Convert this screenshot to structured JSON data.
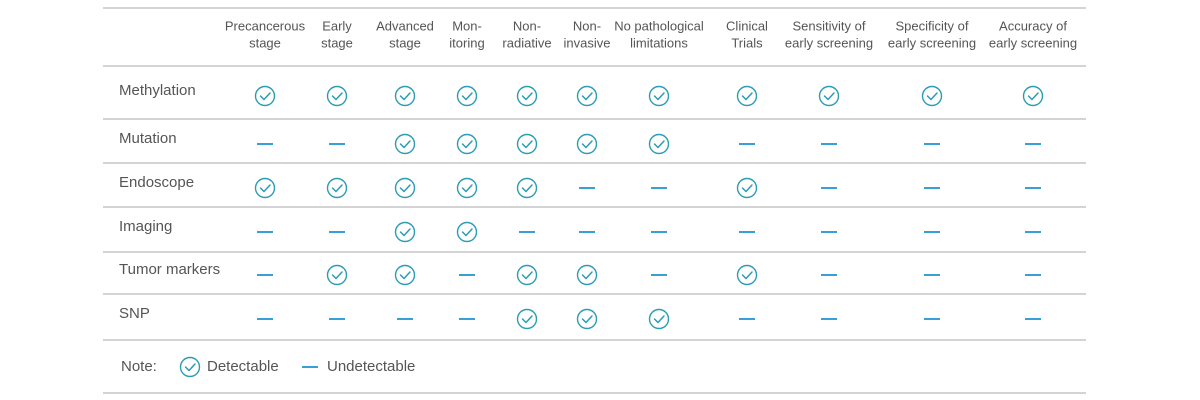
{
  "table": {
    "columns": [
      [
        "Precancerous",
        "stage"
      ],
      [
        "Early",
        "stage"
      ],
      [
        "Advanced",
        "stage"
      ],
      [
        "Mon-",
        "itoring"
      ],
      [
        "Non-",
        "radiative"
      ],
      [
        "Non-",
        "invasive"
      ],
      [
        "No pathological",
        "limitations"
      ],
      [
        "Clinical",
        "Trials"
      ],
      [
        "Sensitivity of",
        "early screening"
      ],
      [
        "Specificity of",
        "early screening"
      ],
      [
        "Accuracy of",
        "early screening"
      ]
    ],
    "rows": [
      {
        "label": "Methylation",
        "detectable": [
          true,
          true,
          true,
          true,
          true,
          true,
          true,
          true,
          true,
          true,
          true
        ]
      },
      {
        "label": "Mutation",
        "detectable": [
          false,
          false,
          true,
          true,
          true,
          true,
          true,
          false,
          false,
          false,
          false
        ]
      },
      {
        "label": "Endoscope",
        "detectable": [
          true,
          true,
          true,
          true,
          true,
          false,
          false,
          true,
          false,
          false,
          false
        ]
      },
      {
        "label": "Imaging",
        "detectable": [
          false,
          false,
          true,
          true,
          false,
          false,
          false,
          false,
          false,
          false,
          false
        ]
      },
      {
        "label": "Tumor markers",
        "detectable": [
          false,
          true,
          true,
          false,
          true,
          true,
          false,
          true,
          false,
          false,
          false
        ]
      },
      {
        "label": "SNP",
        "detectable": [
          false,
          false,
          false,
          false,
          true,
          true,
          true,
          false,
          false,
          false,
          false
        ]
      }
    ]
  },
  "note": {
    "label": "Note:",
    "detectable": "Detectable",
    "undetectable": "Undetectable"
  }
}
